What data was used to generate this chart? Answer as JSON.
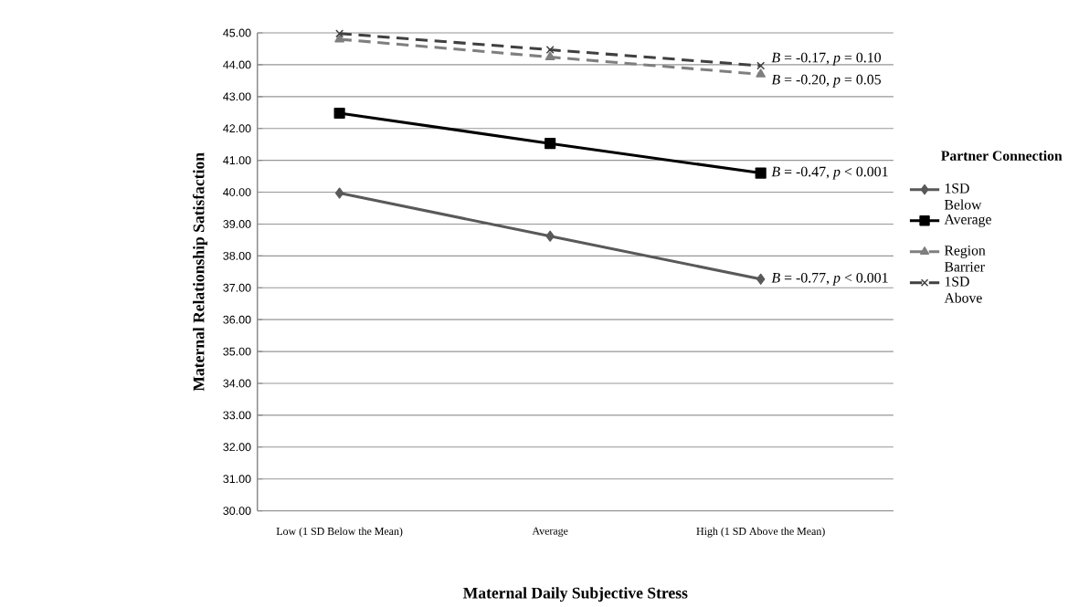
{
  "chart_data": {
    "type": "line",
    "xlabel": "Maternal Daily Subjective Stress",
    "ylabel": "Maternal Relationship Satisfaction",
    "legend_title": "Partner Connection",
    "categories": [
      "Low (1 SD Below the Mean)",
      "Average",
      "High (1 SD Above the Mean)"
    ],
    "series": [
      {
        "name": "1SD Below",
        "color": "#595959",
        "values": [
          39.97,
          38.62,
          37.27
        ],
        "marker": "diamond",
        "line_style": "solid"
      },
      {
        "name": "Average",
        "color": "#000000",
        "values": [
          42.48,
          41.53,
          40.6
        ],
        "marker": "square",
        "line_style": "solid"
      },
      {
        "name": "Region Barrier",
        "color": "#7f7f7f",
        "values": [
          44.8,
          44.24,
          43.7
        ],
        "marker": "triangle",
        "line_style": "dashed"
      },
      {
        "name": "1SD Above",
        "color": "#404040",
        "values": [
          44.98,
          44.47,
          43.97
        ],
        "marker": "cross",
        "line_style": "dashed"
      }
    ],
    "ylim": [
      30,
      45
    ],
    "yticks": [
      {
        "value": 30,
        "label": "30.00"
      },
      {
        "value": 31,
        "label": "31.00"
      },
      {
        "value": 32,
        "label": "32.00"
      },
      {
        "value": 33,
        "label": "33.00"
      },
      {
        "value": 34,
        "label": "34.00"
      },
      {
        "value": 35,
        "label": "35.00"
      },
      {
        "value": 36,
        "label": "36.00"
      },
      {
        "value": 37,
        "label": "37.00"
      },
      {
        "value": 38,
        "label": "38.00"
      },
      {
        "value": 39,
        "label": "39.00"
      },
      {
        "value": 40,
        "label": "40.00"
      },
      {
        "value": 41,
        "label": "41.00"
      },
      {
        "value": 42,
        "label": "42.00"
      },
      {
        "value": 43,
        "label": "43.00"
      },
      {
        "value": 44,
        "label": "44.00"
      },
      {
        "value": 45,
        "label": "45.00"
      }
    ],
    "grid": "y",
    "legend": "right",
    "annotations": [
      {
        "text": "*B* = -0.17, *p* = 0.10",
        "x": "High (1 SD Above the Mean)",
        "y": 43.97
      },
      {
        "text": "*B* = -0.20, *p* = 0.05",
        "x": "High (1 SD Above the Mean)",
        "y": 43.7
      },
      {
        "text": "*B* = -0.47, *p* < 0.001",
        "x": "High (1 SD Above the Mean)",
        "y": 40.6
      },
      {
        "text": "*B* = -0.77, *p* < 0.001",
        "x": "High (1 SD Above the Mean)",
        "y": 37.27
      }
    ]
  }
}
